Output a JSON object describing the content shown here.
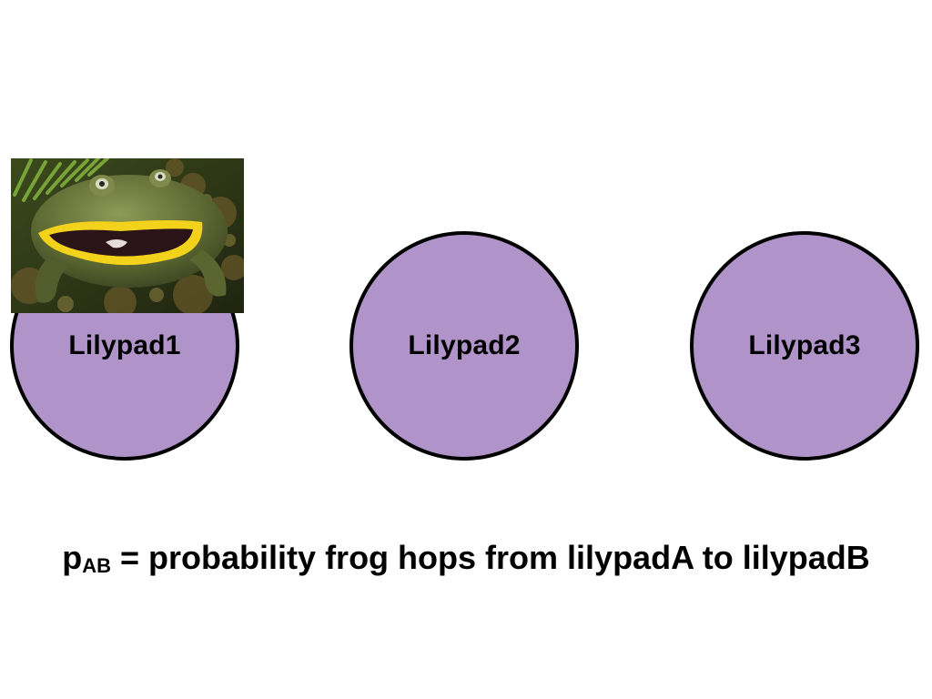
{
  "colors": {
    "pad_fill": "#b094c9",
    "pad_border": "#000000",
    "background": "#ffffff"
  },
  "lilypads": [
    {
      "label": "Lilypad1"
    },
    {
      "label": "Lilypad2"
    },
    {
      "label": "Lilypad3"
    }
  ],
  "image": {
    "subject": "frog-photo"
  },
  "caption": {
    "p": "p",
    "subscript": "AB",
    "rest": " = probability frog hops from lilypadA to lilypadB"
  }
}
